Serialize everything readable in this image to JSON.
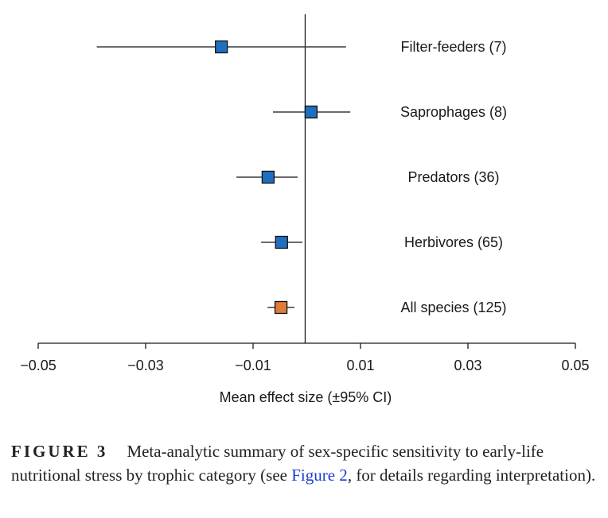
{
  "chart_data": {
    "type": "forest",
    "xlabel": "Mean effect size (±95% CI)",
    "xlim": [
      -0.05,
      0.05
    ],
    "xticks": [
      -0.05,
      -0.03,
      -0.01,
      0.01,
      0.03,
      0.05
    ],
    "xtick_labels": [
      "−0.05",
      "−0.03",
      "−0.01",
      "0.01",
      "0.03",
      "0.05"
    ],
    "reference_line": -0.0003,
    "rows": [
      {
        "label": "Filter-feeders (7)",
        "mean": -0.0159,
        "ci_low": -0.0391,
        "ci_high": 0.0073,
        "color": "#1f6fbf"
      },
      {
        "label": "Saprophages (8)",
        "mean": 0.0008,
        "ci_low": -0.0063,
        "ci_high": 0.0081,
        "color": "#1f6fbf"
      },
      {
        "label": "Predators (36)",
        "mean": -0.0072,
        "ci_low": -0.0131,
        "ci_high": -0.0017,
        "color": "#1f6fbf"
      },
      {
        "label": "Herbivores (65)",
        "mean": -0.0047,
        "ci_low": -0.0085,
        "ci_high": -0.0008,
        "color": "#1f6fbf"
      },
      {
        "label": "All species (125)",
        "mean": -0.0048,
        "ci_low": -0.0073,
        "ci_high": -0.0023,
        "color": "#e07b39"
      }
    ]
  },
  "caption": {
    "label": "FIGURE 3",
    "text_before_link": "Meta-analytic summary of sex-specific sensitivity to early-life nutritional stress by trophic category (see ",
    "link_text": "Figure 2",
    "text_after_link": ", for details regarding interpretation)."
  }
}
